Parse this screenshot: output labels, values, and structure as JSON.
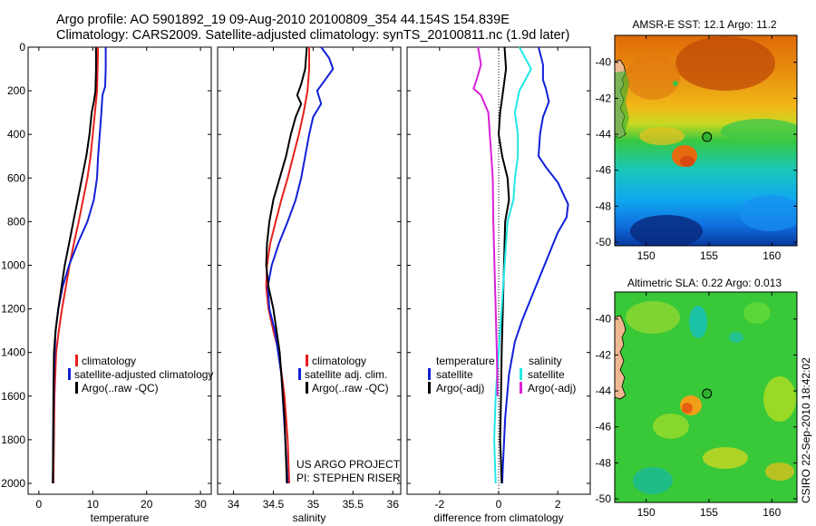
{
  "header": {
    "line1": "Argo profile: AO 5901892_19 09-Aug-2010 20100809_354 44.154S 154.839E",
    "line2": "Climatology: CARS2009. Satellite-adjusted climatology: synTS_20100811.nc (1.9d later)"
  },
  "colors": {
    "red": "#e8201c",
    "blue": "#1020d8",
    "black": "#000000",
    "cyan": "#20e8e8",
    "magenta": "#d820d8"
  },
  "credit": {
    "line1": "US ARGO PROJECT",
    "line2": "PI: STEPHEN RISER"
  },
  "timestamp": "CSIRO 22-Sep-2010 18:42:02",
  "chart_data": [
    {
      "type": "line",
      "xlabel": "temperature",
      "ylabel": "",
      "xlim": [
        -2,
        32
      ],
      "ylim": [
        2050,
        0
      ],
      "xticks": [
        "0",
        "10",
        "20",
        "30"
      ],
      "xtick_values": [
        0,
        10,
        20,
        30
      ],
      "yticks": [
        "0",
        "200",
        "400",
        "600",
        "800",
        "1000",
        "1200",
        "1400",
        "1600",
        "1800",
        "2000"
      ],
      "ytick_values": [
        0,
        200,
        400,
        600,
        800,
        1000,
        1200,
        1400,
        1600,
        1800,
        2000
      ],
      "legend": [
        {
          "label": "climatology",
          "color": "#e8201c"
        },
        {
          "label": "satellite-adjusted climatology",
          "color": "#1020d8"
        },
        {
          "label": "Argo(..raw -QC)",
          "color": "#000000"
        }
      ],
      "series": [
        {
          "color": "#e8201c",
          "x": [
            11.0,
            10.9,
            10.8,
            10.4,
            10.0,
            9.6,
            9.0,
            8.2,
            7.4,
            6.5,
            5.7,
            5.0,
            4.3,
            3.7,
            3.2,
            2.9,
            2.7
          ],
          "y": [
            0,
            100,
            200,
            300,
            400,
            500,
            600,
            700,
            800,
            900,
            1000,
            1100,
            1200,
            1300,
            1400,
            1600,
            2000
          ]
        },
        {
          "color": "#1020d8",
          "x": [
            12.4,
            12.4,
            12.3,
            11.8,
            11.6,
            11.3,
            11.0,
            10.8,
            10.2,
            9.0,
            7.2,
            5.6,
            4.4,
            3.6,
            3.1,
            2.8,
            2.6
          ],
          "y": [
            0,
            100,
            180,
            220,
            300,
            400,
            500,
            600,
            700,
            800,
            900,
            1000,
            1100,
            1200,
            1300,
            1500,
            2000
          ]
        },
        {
          "color": "#000000",
          "x": [
            10.6,
            10.6,
            10.5,
            10.2,
            9.8,
            9.4,
            8.8,
            8.0,
            7.2,
            6.4,
            5.6,
            4.8,
            4.2,
            3.6,
            3.1,
            2.8,
            2.7,
            2.6
          ],
          "y": [
            0,
            100,
            200,
            250,
            300,
            400,
            500,
            600,
            700,
            800,
            900,
            1000,
            1100,
            1200,
            1300,
            1400,
            1600,
            2000
          ]
        }
      ]
    },
    {
      "type": "line",
      "xlabel": "salinity",
      "ylabel": "",
      "xlim": [
        33.8,
        36.1
      ],
      "ylim": [
        2050,
        0
      ],
      "xticks": [
        "34",
        "34.5",
        "35",
        "35.5",
        "36"
      ],
      "xtick_values": [
        34,
        34.5,
        35,
        35.5,
        36
      ],
      "legend": [
        {
          "label": "climatology",
          "color": "#e8201c"
        },
        {
          "label": "satellite adj. clim.",
          "color": "#1020d8"
        },
        {
          "label": "Argo(..raw -QC)",
          "color": "#000000"
        }
      ],
      "series": [
        {
          "color": "#e8201c",
          "x": [
            34.95,
            34.95,
            34.93,
            34.88,
            34.82,
            34.75,
            34.68,
            34.6,
            34.53,
            34.46,
            34.42,
            34.41,
            34.44,
            34.5,
            34.57,
            34.64,
            34.68,
            34.7
          ],
          "y": [
            0,
            100,
            200,
            300,
            400,
            500,
            600,
            700,
            800,
            900,
            1000,
            1100,
            1200,
            1300,
            1400,
            1600,
            1800,
            2000
          ]
        },
        {
          "color": "#1020d8",
          "x": [
            35.1,
            35.2,
            35.25,
            35.15,
            35.05,
            35.1,
            35.0,
            34.95,
            34.9,
            34.85,
            34.78,
            34.68,
            34.57,
            34.48,
            34.43,
            34.45,
            34.52,
            34.6,
            34.65,
            34.68
          ],
          "y": [
            0,
            50,
            100,
            150,
            200,
            260,
            320,
            400,
            500,
            600,
            700,
            800,
            900,
            1000,
            1100,
            1200,
            1300,
            1500,
            1800,
            2000
          ]
        },
        {
          "color": "#000000",
          "x": [
            34.92,
            34.9,
            34.85,
            34.8,
            34.85,
            34.78,
            34.72,
            34.66,
            34.58,
            34.5,
            34.45,
            34.42,
            34.41,
            34.44,
            34.5,
            34.58,
            34.64,
            34.67
          ],
          "y": [
            0,
            100,
            170,
            220,
            260,
            320,
            400,
            500,
            600,
            700,
            800,
            900,
            1000,
            1100,
            1200,
            1400,
            1700,
            2000
          ]
        }
      ],
      "annotations": [
        "US ARGO PROJECT",
        "PI: STEPHEN RISER"
      ]
    },
    {
      "type": "line",
      "xlabel": "difference from climatology",
      "ylabel": "",
      "xlim": [
        -3.1,
        3.1
      ],
      "ylim": [
        2050,
        0
      ],
      "xticks": [
        "-2",
        "0",
        "2"
      ],
      "xtick_values": [
        -2,
        0,
        2
      ],
      "legend": [
        {
          "label": "temperature",
          "color": ""
        },
        {
          "label": "satellite",
          "color": "#1020d8"
        },
        {
          "label": "Argo(-adj)",
          "color": "#000000"
        },
        {
          "label": "salinity",
          "color": ""
        },
        {
          "label": "satellite",
          "color": "#20e8e8"
        },
        {
          "label": "Argo(-adj)",
          "color": "#d820d8"
        }
      ],
      "series": [
        {
          "color": "#1020d8",
          "x": [
            1.35,
            1.5,
            1.5,
            1.6,
            1.7,
            1.5,
            1.4,
            1.35,
            1.6,
            2.0,
            2.35,
            2.3,
            2.0,
            1.7,
            1.4,
            1.1,
            0.8,
            0.55,
            0.35,
            0.22,
            0.15,
            0.12
          ],
          "y": [
            0,
            80,
            150,
            190,
            250,
            320,
            400,
            500,
            550,
            620,
            720,
            780,
            850,
            950,
            1050,
            1150,
            1250,
            1350,
            1500,
            1700,
            1900,
            2000
          ]
        },
        {
          "color": "#000000",
          "x": [
            0.2,
            0.25,
            0.15,
            0.05,
            0.0,
            0.12,
            0.3,
            0.35,
            0.22,
            0.2,
            0.18,
            0.14,
            0.1,
            0.08,
            0.05,
            0.08,
            0.1
          ],
          "y": [
            0,
            100,
            200,
            300,
            400,
            500,
            600,
            700,
            800,
            900,
            1000,
            1200,
            1400,
            1600,
            1800,
            1900,
            2000
          ]
        },
        {
          "color": "#20e8e8",
          "x": [
            0.7,
            0.9,
            1.1,
            0.9,
            0.7,
            0.55,
            0.65,
            0.65,
            0.55,
            0.5,
            0.3,
            0.2,
            0.1,
            0.0,
            -0.1,
            -0.15,
            -0.1
          ],
          "y": [
            0,
            50,
            100,
            150,
            200,
            300,
            400,
            500,
            600,
            700,
            800,
            1000,
            1200,
            1400,
            1600,
            1800,
            2000
          ]
        },
        {
          "color": "#d820d8",
          "x": [
            -0.7,
            -0.6,
            -0.75,
            -0.85,
            -0.6,
            -0.35,
            -0.3,
            -0.25,
            -0.2,
            -0.18,
            -0.14,
            -0.1,
            -0.06,
            -0.04
          ],
          "y": [
            0,
            80,
            150,
            190,
            220,
            300,
            400,
            500,
            600,
            800,
            1000,
            1200,
            1400,
            1600
          ]
        }
      ]
    },
    {
      "type": "heatmap",
      "title": "AMSR-E SST: 12.1 Argo: 11.2",
      "xlim": [
        147.5,
        162
      ],
      "ylim": [
        -50.2,
        -38.5
      ],
      "xticks": [
        "150",
        "155",
        "160"
      ],
      "xtick_values": [
        150,
        155,
        160
      ],
      "yticks": [
        "-40",
        "-42",
        "-44",
        "-46",
        "-48",
        "-50"
      ],
      "ytick_values": [
        -40,
        -42,
        -44,
        -46,
        -48,
        -50
      ],
      "marker": {
        "lon": 154.84,
        "lat": -44.15
      }
    },
    {
      "type": "heatmap",
      "title": "Altimetric SLA: 0.22 Argo: 0.013",
      "xlim": [
        147.5,
        162
      ],
      "ylim": [
        -50.2,
        -38.5
      ],
      "xticks": [
        "150",
        "155",
        "160"
      ],
      "xtick_values": [
        150,
        155,
        160
      ],
      "yticks": [
        "-40",
        "-42",
        "-44",
        "-46",
        "-48",
        "-50"
      ],
      "ytick_values": [
        -40,
        -42,
        -44,
        -46,
        -48,
        -50
      ],
      "marker": {
        "lon": 154.84,
        "lat": -44.15
      }
    }
  ]
}
